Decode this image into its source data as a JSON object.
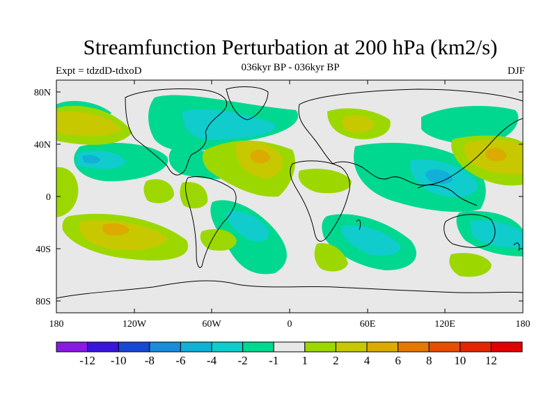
{
  "title": "Streamfunction Perturbation at 200 hPa (km2/s)",
  "subtitle": "036kyr BP - 036kyr BP",
  "left_label": "Expt = tdzdD-tdxoD",
  "right_label": "DJF",
  "axes": {
    "lat_ticks": [
      "80N",
      "40N",
      "0",
      "40S",
      "80S"
    ],
    "lon_ticks": [
      "180",
      "120W",
      "60W",
      "0",
      "60E",
      "120E",
      "180"
    ]
  },
  "colorbar": {
    "colors": [
      "#8a1ae0",
      "#3a16d8",
      "#1848d0",
      "#1a8cdc",
      "#12b0d8",
      "#10cccc",
      "#00d890",
      "#e8e8e8",
      "#9cd800",
      "#c8c800",
      "#dcaa00",
      "#e67800",
      "#e25000",
      "#e02800",
      "#e00000"
    ],
    "labels": [
      "-12",
      "-10",
      "-8",
      "-6",
      "-4",
      "-2",
      "-1",
      "1",
      "2",
      "4",
      "6",
      "8",
      "10",
      "12"
    ]
  }
}
